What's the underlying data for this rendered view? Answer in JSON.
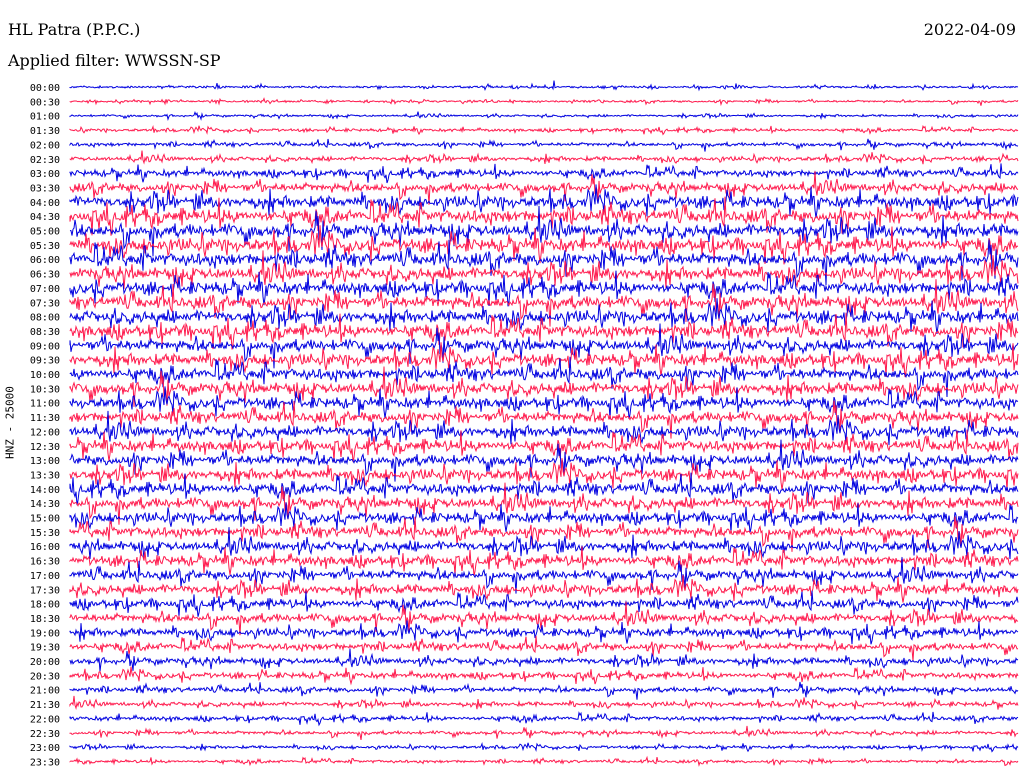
{
  "header": {
    "station": "HL Patra (P.P.C.)",
    "date": "2022-04-09",
    "filter_label": "Applied filter: WWSSN-SP"
  },
  "colors": {
    "odd": "#0000e0",
    "even": "#ff1a4d"
  },
  "chart_data": {
    "type": "line",
    "title": "HL Patra (P.P.C.)",
    "ylabel": "HNZ - 25000",
    "rows": [
      "00:00",
      "00:30",
      "01:00",
      "01:30",
      "02:00",
      "02:30",
      "03:00",
      "03:30",
      "04:00",
      "04:30",
      "05:00",
      "05:30",
      "06:00",
      "06:30",
      "07:00",
      "07:30",
      "08:00",
      "08:30",
      "09:00",
      "09:30",
      "10:00",
      "10:30",
      "11:00",
      "11:30",
      "12:00",
      "12:30",
      "13:00",
      "13:30",
      "14:00",
      "14:30",
      "15:00",
      "15:30",
      "16:00",
      "16:30",
      "17:00",
      "17:30",
      "18:00",
      "18:30",
      "19:00",
      "19:30",
      "20:00",
      "20:30",
      "21:00",
      "21:30",
      "22:00",
      "22:30",
      "23:00",
      "23:30"
    ],
    "relative_amplitude": [
      0.15,
      0.15,
      0.15,
      0.2,
      0.25,
      0.3,
      0.45,
      0.6,
      0.8,
      0.9,
      0.9,
      0.9,
      0.9,
      0.85,
      0.85,
      0.85,
      0.85,
      0.85,
      0.8,
      0.8,
      0.8,
      0.8,
      0.75,
      0.75,
      0.75,
      0.75,
      0.75,
      0.75,
      0.75,
      0.75,
      0.7,
      0.7,
      0.7,
      0.7,
      0.65,
      0.65,
      0.6,
      0.6,
      0.55,
      0.5,
      0.45,
      0.4,
      0.35,
      0.3,
      0.3,
      0.25,
      0.2,
      0.2
    ],
    "grid": false
  }
}
